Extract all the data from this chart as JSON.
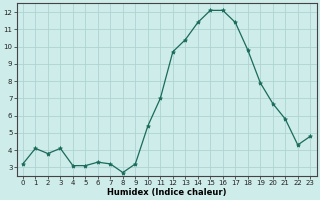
{
  "x": [
    0,
    1,
    2,
    3,
    4,
    5,
    6,
    7,
    8,
    9,
    10,
    11,
    12,
    13,
    14,
    15,
    16,
    17,
    18,
    19,
    20,
    21,
    22,
    23
  ],
  "y": [
    3.2,
    4.1,
    3.8,
    4.1,
    3.1,
    3.1,
    3.3,
    3.2,
    2.7,
    3.2,
    5.4,
    7.0,
    9.7,
    10.4,
    11.4,
    12.1,
    12.1,
    11.4,
    9.8,
    7.9,
    6.7,
    5.8,
    4.3,
    4.8
  ],
  "xlabel": "Humidex (Indice chaleur)",
  "bg_color": "#ceecea",
  "grid_color": "#aed4d0",
  "line_color": "#1a6b5a",
  "marker_color": "#1a6b5a",
  "ylim": [
    2.5,
    12.5
  ],
  "xlim": [
    -0.5,
    23.5
  ],
  "yticks": [
    3,
    4,
    5,
    6,
    7,
    8,
    9,
    10,
    11,
    12
  ],
  "xticks": [
    0,
    1,
    2,
    3,
    4,
    5,
    6,
    7,
    8,
    9,
    10,
    11,
    12,
    13,
    14,
    15,
    16,
    17,
    18,
    19,
    20,
    21,
    22,
    23
  ],
  "xlabel_fontsize": 6.0,
  "tick_fontsize": 5.0
}
